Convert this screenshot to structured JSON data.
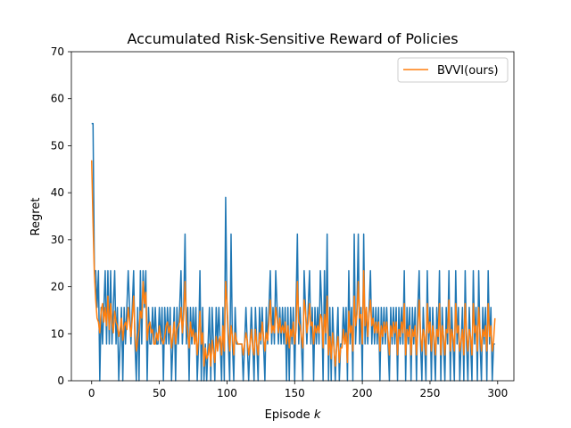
{
  "chart_data": {
    "type": "line",
    "title": "Accumulated Risk-Sensitive Reward of Policies",
    "xlabel": "Episode",
    "xlabel_var": "k",
    "ylabel": "Regret",
    "xlim": [
      -15,
      312
    ],
    "ylim": [
      0,
      70
    ],
    "xticks": [
      0,
      50,
      100,
      150,
      200,
      250,
      300
    ],
    "yticks": [
      0,
      10,
      20,
      30,
      40,
      50,
      60,
      70
    ],
    "grid": false,
    "legend_position": "upper right",
    "series": [
      {
        "name": "",
        "color": "#1f77b4",
        "x_start": 0,
        "x_step": 1,
        "values": [
          54.7,
          54.7,
          23.4,
          23.4,
          15.6,
          23.4,
          0,
          15.6,
          7.8,
          15.6,
          23.4,
          7.8,
          23.4,
          7.8,
          23.4,
          7.8,
          15.6,
          23.4,
          7.8,
          15.6,
          0,
          7.8,
          15.6,
          0,
          15.6,
          7.8,
          15.6,
          23.4,
          15.6,
          7.8,
          15.6,
          23.4,
          7.8,
          0,
          15.6,
          0,
          23.4,
          7.8,
          23.4,
          15.6,
          23.4,
          0,
          15.6,
          7.8,
          7.8,
          15.6,
          7.8,
          15.6,
          7.8,
          7.8,
          15.6,
          7.8,
          15.6,
          0,
          15.6,
          7.8,
          15.6,
          7.8,
          15.6,
          0,
          7.8,
          15.6,
          0,
          15.6,
          7.8,
          15.6,
          23.4,
          7.8,
          15.6,
          31.2,
          7.8,
          15.6,
          0,
          15.6,
          7.8,
          15.6,
          7.8,
          15.6,
          0,
          7.8,
          23.4,
          0,
          15.6,
          0,
          7.8,
          0,
          7.8,
          15.6,
          0,
          15.6,
          7.8,
          0,
          15.6,
          7.8,
          15.6,
          7.8,
          0,
          15.6,
          0,
          39.0,
          15.6,
          7.8,
          0,
          31.2,
          7.8,
          0,
          15.6,
          7.8,
          7.8,
          7.8,
          7.8,
          7.8,
          0,
          7.8,
          15.6,
          7.8,
          0,
          7.8,
          15.6,
          7.8,
          0,
          15.6,
          7.8,
          0,
          15.6,
          7.8,
          15.6,
          7.8,
          0,
          15.6,
          7.8,
          15.6,
          23.4,
          7.8,
          15.6,
          7.8,
          23.4,
          15.6,
          7.8,
          15.6,
          7.8,
          15.6,
          7.8,
          15.6,
          0,
          15.6,
          0,
          15.6,
          7.8,
          15.6,
          0,
          15.6,
          31.2,
          7.8,
          15.6,
          7.8,
          0,
          23.4,
          15.6,
          7.8,
          15.6,
          23.4,
          7.8,
          15.6,
          0,
          15.6,
          7.8,
          15.6,
          7.8,
          23.4,
          15.6,
          0,
          23.4,
          7.8,
          31.2,
          0,
          15.6,
          0,
          15.6,
          7.8,
          0,
          7.8,
          15.6,
          0,
          7.8,
          7.8,
          15.6,
          7.8,
          15.6,
          0,
          23.4,
          7.8,
          15.6,
          0,
          31.2,
          7.8,
          15.6,
          31.2,
          7.8,
          15.6,
          0,
          31.2,
          7.8,
          15.6,
          7.8,
          15.6,
          23.4,
          7.8,
          15.6,
          7.8,
          15.6,
          7.8,
          15.6,
          0,
          15.6,
          7.8,
          15.6,
          7.8,
          15.6,
          7.8,
          0,
          15.6,
          7.8,
          15.6,
          7.8,
          15.6,
          0,
          15.6,
          7.8,
          15.6,
          7.8,
          23.4,
          0,
          15.6,
          7.8,
          15.6,
          0,
          15.6,
          7.8,
          15.6,
          0,
          15.6,
          23.4,
          7.8,
          0,
          15.6,
          7.8,
          0,
          23.4,
          7.8,
          15.6,
          0,
          15.6,
          7.8,
          0,
          15.6,
          7.8,
          23.4,
          0,
          15.6,
          7.8,
          0,
          15.6,
          7.8,
          23.4,
          0,
          15.6,
          7.8,
          0,
          23.4,
          7.8,
          15.6,
          0,
          7.8,
          15.6,
          0,
          23.4,
          7.8,
          0,
          15.6,
          7.8,
          0,
          23.4,
          7.8,
          15.6,
          0,
          23.4,
          7.8,
          0,
          15.6,
          7.8,
          15.6,
          0,
          23.4,
          7.8,
          15.6,
          0,
          7.8,
          7.8
        ]
      },
      {
        "name": "BVVI(ours)",
        "color": "#ff7f0e",
        "x_start": 0,
        "x_step": 1,
        "values": [
          46.9,
          33.6,
          22.7,
          17.2,
          13.3,
          12.5,
          10.2,
          14.8,
          16.4,
          12.5,
          15.6,
          11.7,
          18.0,
          10.9,
          16.4,
          12.5,
          10.2,
          14.8,
          12.5,
          11.7,
          9.4,
          10.9,
          13.3,
          8.6,
          11.7,
          12.5,
          10.9,
          15.6,
          12.5,
          9.4,
          13.3,
          18.0,
          10.2,
          6.3,
          8.6,
          10.9,
          14.8,
          13.3,
          21.1,
          16.4,
          18.8,
          8.6,
          11.7,
          12.5,
          10.2,
          10.9,
          7.8,
          7.8,
          10.2,
          8.6,
          11.7,
          9.4,
          8.6,
          7.8,
          9.4,
          11.7,
          12.5,
          10.2,
          11.7,
          7.0,
          9.4,
          12.5,
          7.8,
          10.9,
          11.7,
          12.5,
          15.6,
          10.2,
          14.1,
          21.1,
          12.5,
          10.2,
          7.0,
          12.5,
          9.4,
          10.9,
          7.8,
          10.2,
          5.5,
          9.4,
          14.8,
          7.8,
          10.2,
          3.1,
          7.0,
          4.7,
          5.5,
          7.8,
          3.1,
          8.6,
          6.3,
          3.9,
          9.4,
          6.3,
          8.6,
          9.4,
          5.5,
          11.7,
          6.3,
          21.1,
          16.4,
          10.2,
          6.3,
          11.7,
          9.4,
          5.5,
          10.2,
          8.6,
          7.8,
          7.8,
          7.8,
          7.8,
          5.5,
          7.8,
          10.2,
          8.6,
          5.5,
          7.8,
          10.9,
          7.0,
          5.5,
          10.9,
          7.8,
          5.5,
          10.2,
          8.6,
          12.5,
          9.4,
          6.3,
          10.2,
          8.6,
          12.5,
          17.2,
          10.2,
          11.7,
          10.2,
          15.6,
          13.3,
          10.2,
          13.3,
          10.2,
          11.7,
          10.2,
          12.5,
          7.8,
          11.7,
          7.0,
          10.9,
          9.4,
          12.5,
          7.8,
          10.9,
          21.1,
          12.5,
          11.7,
          9.4,
          7.0,
          17.2,
          14.8,
          10.2,
          12.5,
          16.4,
          11.7,
          12.5,
          7.8,
          11.7,
          10.2,
          11.7,
          10.2,
          14.1,
          13.3,
          7.0,
          14.1,
          10.2,
          18.0,
          5.5,
          9.4,
          4.7,
          10.2,
          7.0,
          3.1,
          7.0,
          9.4,
          3.9,
          7.0,
          7.0,
          10.9,
          7.8,
          10.2,
          3.9,
          14.8,
          10.2,
          11.7,
          6.3,
          18.0,
          11.7,
          14.1,
          21.1,
          13.3,
          14.1,
          7.8,
          23.4,
          11.7,
          15.6,
          9.4,
          14.1,
          17.2,
          11.7,
          13.3,
          10.2,
          12.5,
          10.2,
          12.5,
          6.3,
          11.7,
          9.4,
          12.5,
          10.2,
          12.5,
          9.4,
          5.5,
          11.7,
          9.4,
          12.5,
          10.2,
          12.5,
          5.5,
          10.9,
          9.4,
          12.5,
          10.2,
          16.4,
          5.5,
          10.9,
          9.4,
          11.7,
          5.5,
          10.9,
          9.4,
          11.7,
          5.5,
          10.9,
          17.2,
          10.2,
          6.3,
          10.9,
          9.4,
          5.5,
          16.4,
          10.2,
          12.5,
          6.3,
          11.7,
          9.4,
          5.5,
          10.9,
          9.4,
          16.4,
          5.5,
          11.7,
          9.4,
          5.5,
          10.9,
          10.2,
          17.2,
          6.3,
          10.9,
          9.4,
          6.3,
          16.4,
          10.2,
          11.7,
          6.3,
          8.6,
          10.9,
          5.5,
          16.4,
          10.2,
          6.3,
          10.9,
          9.4,
          5.5,
          16.4,
          10.2,
          11.7,
          6.3,
          15.6,
          10.2,
          6.3,
          10.9,
          9.4,
          11.7,
          6.3,
          16.4,
          9.4,
          11.7,
          6.3,
          8.6,
          13.3
        ]
      }
    ]
  }
}
